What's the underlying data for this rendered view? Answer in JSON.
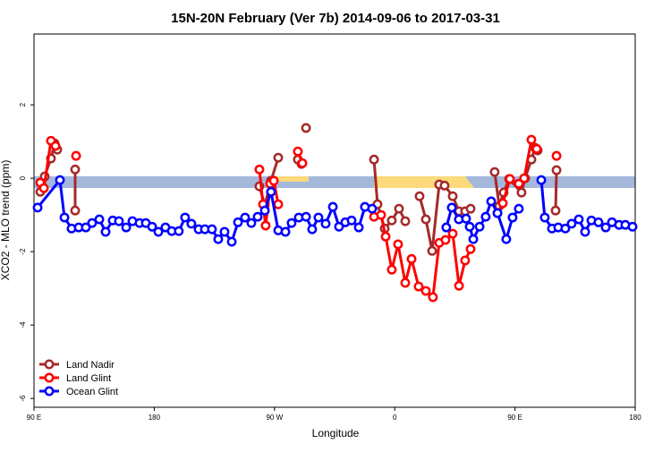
{
  "chart_data": {
    "type": "line",
    "title": "15N-20N February (Ver 7b)   2014-09-06 to 2017-03-31",
    "x_label": "Longitude",
    "y_label": "XCO2 - MLO trend (ppm)",
    "xlim": [
      90,
      540
    ],
    "ylim": [
      -6.24,
      3.93
    ],
    "xticks": [
      {
        "value": 90,
        "label": "90 E"
      },
      180,
      {
        "value": 270,
        "label": "90 W"
      },
      {
        "value": 360,
        "label": "0"
      },
      {
        "value": 450,
        "label": "90 E"
      },
      {
        "value": 540,
        "label": "180"
      }
    ],
    "yticks": [
      -6,
      -4,
      -2,
      0,
      2
    ],
    "legend": "bottom-left",
    "series": [
      {
        "name": "Land Nadir",
        "color": "#a52a2a",
        "x": [
          94.7,
          98,
          102.7,
          105.4,
          107.4,
          null,
          120.8,
          120.8,
          null,
          258.7,
          262.8,
          267.4,
          272.8,
          null,
          287.5,
          290.2,
          null,
          293.6,
          null,
          344.5,
          347.1,
          352.5,
          357.8,
          363.2,
          367.9,
          null,
          378.6,
          383.3,
          388,
          393.3,
          397.3,
          403.4,
          408.1,
          412.7,
          416.8,
          null,
          434.8,
          438.2,
          441.5,
          445.6,
          454.9,
          457.6,
          462.3,
          465,
          467,
          null,
          481.1,
          480.4
        ],
        "values": [
          -0.37,
          0.05,
          0.54,
          0.95,
          0.78,
          null,
          0.24,
          -0.88,
          null,
          -0.22,
          -0.73,
          -0.07,
          0.56,
          null,
          0.51,
          0.39,
          null,
          1.37,
          null,
          0.51,
          -0.71,
          -1.37,
          -1.15,
          -0.83,
          -1.17,
          null,
          -0.49,
          -1.12,
          -1.98,
          -0.17,
          -0.2,
          -0.49,
          -0.9,
          -0.9,
          -0.83,
          null,
          0.17,
          -0.76,
          -0.39,
          -0.02,
          -0.39,
          0,
          0.51,
          0.83,
          0.76,
          null,
          0.22,
          -0.88
        ]
      },
      {
        "name": "Land Glint",
        "color": "#ff0000",
        "x": [
          94.7,
          97.4,
          102.7,
          106.1,
          null,
          121.5,
          null,
          258.7,
          261.4,
          263.4,
          266.8,
          269.5,
          272.8,
          null,
          287.5,
          290.9,
          null,
          344.5,
          349.8,
          353.2,
          357.8,
          362.5,
          367.9,
          372.6,
          377.9,
          383.3,
          388.6,
          393.3,
          398,
          403.4,
          408.1,
          412.7,
          416.8,
          null,
          436.9,
          440.9,
          446.2,
          452.9,
          456.9,
          462.3,
          466.3,
          null,
          481.1
        ],
        "values": [
          -0.12,
          -0.27,
          1.02,
          0.88,
          null,
          0.61,
          null,
          0.24,
          -0.71,
          -1.29,
          -0.15,
          -0.07,
          -0.71,
          null,
          0.73,
          0.41,
          null,
          -1.05,
          -1.0,
          -1.59,
          -2.49,
          -1.8,
          -2.85,
          -2.2,
          -2.95,
          -3.07,
          -3.24,
          -1.76,
          -1.68,
          -1.51,
          -2.93,
          -2.24,
          -1.93,
          null,
          -0.95,
          -0.68,
          -0.02,
          -0.15,
          0,
          1.05,
          0.8,
          null,
          0.61
        ]
      },
      {
        "name": "Ocean Glint",
        "color": "#0000ff",
        "x": [
          92.7,
          109.4,
          112.8,
          118.1,
          123.5,
          128.8,
          133.5,
          138.9,
          143.6,
          148.9,
          153.6,
          159,
          163.7,
          169,
          173.7,
          178.4,
          183.1,
          188.4,
          193.1,
          198.4,
          203.1,
          207.8,
          213.2,
          217.9,
          223.2,
          227.9,
          232.6,
          238,
          242.7,
          248,
          252.7,
          257.4,
          262.8,
          267.4,
          272.8,
          278.2,
          282.8,
          288.2,
          293.6,
          298.2,
          302.9,
          308.3,
          313.7,
          318.3,
          323,
          327.7,
          333.1,
          337.7,
          343.1,
          null,
          398.6,
          402.7,
          408,
          413.4,
          416.1,
          418.8,
          423.5,
          428.1,
          432.2,
          436.9,
          443.5,
          448.2,
          452.9,
          null,
          469.7,
          472.3,
          477.7,
          482.4,
          487.7,
          492.4,
          497.8,
          502.5,
          507.2,
          512.5,
          517.9,
          522.6,
          527.9,
          532.6,
          538
        ],
        "values": [
          -0.8,
          -0.05,
          -1.07,
          -1.37,
          -1.34,
          -1.34,
          -1.22,
          -1.12,
          -1.46,
          -1.15,
          -1.17,
          -1.34,
          -1.17,
          -1.22,
          -1.22,
          -1.32,
          -1.46,
          -1.34,
          -1.44,
          -1.44,
          -1.07,
          -1.24,
          -1.39,
          -1.39,
          -1.39,
          -1.66,
          -1.46,
          -1.73,
          -1.2,
          -1.07,
          -1.22,
          -1.05,
          -0.88,
          -0.37,
          -1.42,
          -1.46,
          -1.22,
          -1.07,
          -1.05,
          -1.39,
          -1.07,
          -1.24,
          -0.78,
          -1.32,
          -1.2,
          -1.15,
          -1.34,
          -0.78,
          -0.83,
          null,
          -1.34,
          -0.8,
          -1.12,
          -1.1,
          -1.32,
          -1.66,
          -1.32,
          -1.05,
          -0.63,
          -0.95,
          -1.66,
          -1.07,
          -0.83,
          null,
          -0.05,
          -1.07,
          -1.37,
          -1.34,
          -1.37,
          -1.24,
          -1.12,
          -1.46,
          -1.15,
          -1.2,
          -1.34,
          -1.2,
          -1.27,
          -1.27,
          -1.32
        ]
      }
    ]
  }
}
